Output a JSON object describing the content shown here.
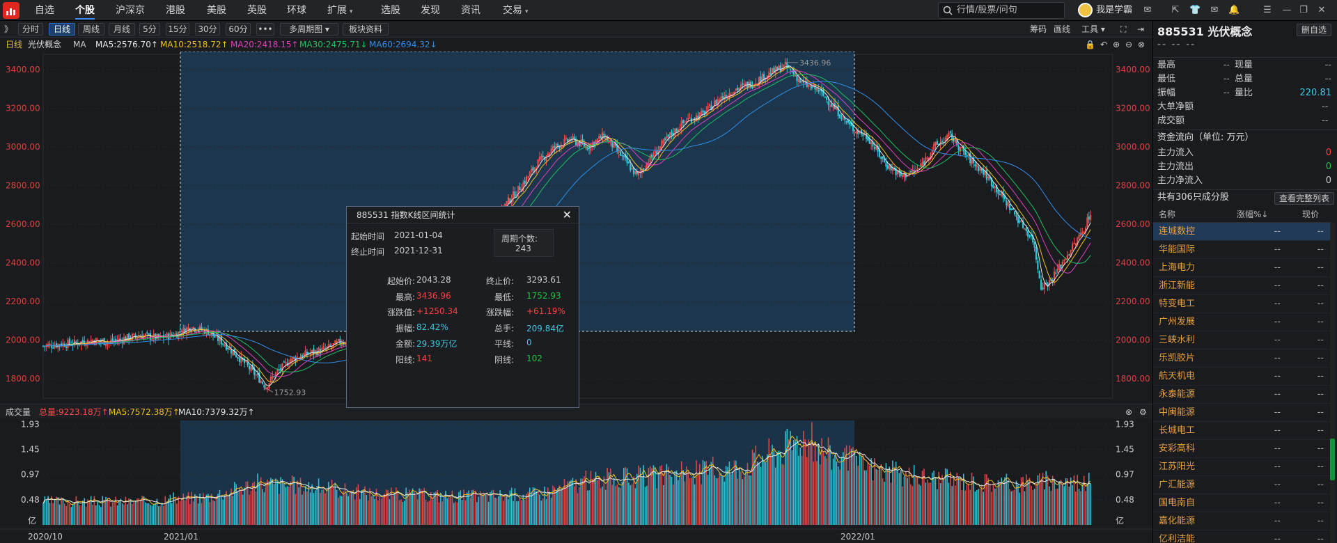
{
  "nav": {
    "items": [
      {
        "label": "自选",
        "active": false
      },
      {
        "label": "个股",
        "active": true
      },
      {
        "label": "沪深京",
        "active": false
      },
      {
        "label": "港股",
        "active": false
      },
      {
        "label": "美股",
        "active": false
      },
      {
        "label": "英股",
        "active": false
      },
      {
        "label": "环球",
        "active": false
      },
      {
        "label": "扩展",
        "active": false,
        "caret": true
      },
      {
        "label": "选股",
        "active": false
      },
      {
        "label": "发现",
        "active": false
      },
      {
        "label": "资讯",
        "active": false
      },
      {
        "label": "交易",
        "active": false,
        "caret": true
      }
    ],
    "search_placeholder": "行情/股票/问句",
    "username": "我是学霸S",
    "right_icons": [
      "message-icon",
      "restore-icon",
      "shirt-icon",
      "mail-icon",
      "bell-icon",
      "menu-icon",
      "minimize-icon",
      "maximize-icon",
      "close-icon"
    ]
  },
  "toolbar": {
    "expand_icon": "》",
    "periods": [
      {
        "label": "分时",
        "active": false
      },
      {
        "label": "日线",
        "active": true
      },
      {
        "label": "周线",
        "active": false
      },
      {
        "label": "月线",
        "active": false
      },
      {
        "label": "5分",
        "active": false
      },
      {
        "label": "15分",
        "active": false
      },
      {
        "label": "30分",
        "active": false
      },
      {
        "label": "60分",
        "active": false
      },
      {
        "label": "•••",
        "active": false
      },
      {
        "label": "多周期图 ▾",
        "active": false
      },
      {
        "label": "板块资料",
        "active": false
      }
    ],
    "right": [
      "筹码",
      "画线",
      "工具 ▾"
    ]
  },
  "ma_bar": {
    "period": "日线",
    "name": "光伏概念",
    "ma": "MA",
    "ma5": "MA5:2576.70↑",
    "ma10": "MA10:2518.72↑",
    "ma20": "MA20:2418.15↑",
    "ma30": "MA30:2475.71↓",
    "ma60": "MA60:2694.32↓",
    "colors": {
      "ma5": "#e8e8e8",
      "ma10": "#f0c020",
      "ma20": "#e040c0",
      "ma30": "#20c060",
      "ma60": "#3090e8"
    }
  },
  "chart_data": {
    "type": "candlestick",
    "y_ticks": [
      "3400.00",
      "3200.00",
      "3000.00",
      "2800.00",
      "2600.00",
      "2400.00",
      "2200.00",
      "2000.00",
      "1800.00"
    ],
    "ylim": [
      1700,
      3480
    ],
    "high_label": "3436.96",
    "low_label": "1752.93",
    "x_ticks": [
      "2020/10",
      "2021/01",
      "2022/01"
    ],
    "close_points": [
      [
        0,
        1970
      ],
      [
        10,
        1980
      ],
      [
        20,
        1985
      ],
      [
        30,
        2000
      ],
      [
        40,
        1990
      ],
      [
        50,
        2010
      ],
      [
        60,
        2025
      ],
      [
        70,
        2010
      ],
      [
        80,
        2030
      ],
      [
        90,
        2070
      ],
      [
        100,
        2043
      ],
      [
        110,
        1980
      ],
      [
        120,
        1900
      ],
      [
        130,
        1810
      ],
      [
        135,
        1760
      ],
      [
        140,
        1820
      ],
      [
        150,
        1900
      ],
      [
        160,
        1930
      ],
      [
        170,
        1950
      ],
      [
        180,
        1990
      ],
      [
        190,
        2000
      ],
      [
        200,
        1980
      ],
      [
        210,
        2020
      ],
      [
        220,
        2080
      ],
      [
        230,
        2150
      ],
      [
        240,
        2200
      ],
      [
        250,
        2300
      ],
      [
        260,
        2420
      ],
      [
        270,
        2560
      ],
      [
        280,
        2700
      ],
      [
        290,
        2800
      ],
      [
        300,
        2920
      ],
      [
        310,
        3000
      ],
      [
        320,
        3040
      ],
      [
        330,
        3000
      ],
      [
        340,
        3060
      ],
      [
        350,
        2960
      ],
      [
        360,
        2850
      ],
      [
        370,
        2960
      ],
      [
        380,
        3060
      ],
      [
        390,
        3140
      ],
      [
        400,
        3170
      ],
      [
        410,
        3250
      ],
      [
        420,
        3300
      ],
      [
        430,
        3330
      ],
      [
        440,
        3380
      ],
      [
        450,
        3420
      ],
      [
        455,
        3380
      ],
      [
        460,
        3330
      ],
      [
        470,
        3294
      ],
      [
        480,
        3200
      ],
      [
        490,
        3100
      ],
      [
        500,
        3050
      ],
      [
        510,
        2920
      ],
      [
        520,
        2850
      ],
      [
        530,
        2880
      ],
      [
        540,
        3000
      ],
      [
        550,
        3060
      ],
      [
        560,
        2950
      ],
      [
        570,
        2870
      ],
      [
        580,
        2760
      ],
      [
        590,
        2640
      ],
      [
        600,
        2520
      ],
      [
        605,
        2280
      ],
      [
        610,
        2300
      ],
      [
        620,
        2430
      ],
      [
        630,
        2560
      ],
      [
        635,
        2660
      ]
    ],
    "volume_yticks": [
      "1.93",
      "1.45",
      "0.97",
      "0.48",
      "亿"
    ]
  },
  "volume_bar": {
    "label": "成交量",
    "total": "总量:9223.18万↑",
    "ma5": "MA5:7572.38万↑",
    "ma10": "MA10:7379.32万↑"
  },
  "stats_dialog": {
    "title": "885531  指数K线区间统计",
    "start_label": "起始时间",
    "start_value": "2021-01-04",
    "end_label": "终止时间",
    "end_value": "2021-12-31",
    "period_count_label": "周期个数:",
    "period_count_value": "243",
    "rows": [
      {
        "l1": "起始价:",
        "v1": "2043.28",
        "c1": "#cccccc",
        "l2": "终止价:",
        "v2": "3293.61",
        "c2": "#cccccc"
      },
      {
        "l1": "最高:",
        "v1": "3436.96",
        "c1": "#ff4040",
        "l2": "最低:",
        "v2": "1752.93",
        "c2": "#20c040"
      },
      {
        "l1": "涨跌值:",
        "v1": "+1250.34",
        "c1": "#ff4040",
        "l2": "涨跌幅:",
        "v2": "+61.19%",
        "c2": "#ff4040"
      },
      {
        "l1": "振幅:",
        "v1": "82.42%",
        "c1": "#40c8e0",
        "l2": "总手:",
        "v2": "209.84亿",
        "c2": "#40c8e0"
      },
      {
        "l1": "金额:",
        "v1": "29.39万亿",
        "c1": "#40c8e0",
        "l2": "平线:",
        "v2": "0",
        "c2": "#40c8e0"
      },
      {
        "l1": "阳线:",
        "v1": "141",
        "c1": "#ff4040",
        "l2": "阴线:",
        "v2": "102",
        "c2": "#20c040"
      }
    ]
  },
  "right_panel": {
    "code_name": "885531 光伏概念",
    "button": "删自选",
    "price_dash": "-- -- --",
    "quote": [
      {
        "l": "最高",
        "v": "--",
        "l2": "现量",
        "v2": "--"
      },
      {
        "l": "最低",
        "v": "--",
        "l2": "总量",
        "v2": "--"
      },
      {
        "l": "振幅",
        "v": "--",
        "l2": "量比",
        "v2": "220.81"
      }
    ],
    "big_order": "大单净额",
    "big_order_v": "--",
    "deal_count": "成交额",
    "deal_count_v": "--",
    "flow_title": "资金流向（单位: 万元）",
    "flow": [
      {
        "l": "主力流入",
        "v": "0",
        "c": "#ff4040"
      },
      {
        "l": "主力流出",
        "v": "0",
        "c": "#20c040"
      },
      {
        "l": "主力净流入",
        "v": "0",
        "c": "#cccccc"
      }
    ],
    "components_title": "共有306只成分股",
    "components_button": "查看完整列表",
    "col_name": "名称",
    "col_chg": "涨幅%↓",
    "col_price": "现价",
    "stocks": [
      "连城数控",
      "华能国际",
      "上海电力",
      "浙江新能",
      "特变电工",
      "广州发展",
      "三峡水利",
      "乐凯胶片",
      "航天机电",
      "永泰能源",
      "中闽能源",
      "长城电工",
      "安彩高科",
      "江苏阳光",
      "广汇能源",
      "国电南自",
      "嘉化能源",
      "亿利洁能"
    ],
    "dash": "--"
  }
}
